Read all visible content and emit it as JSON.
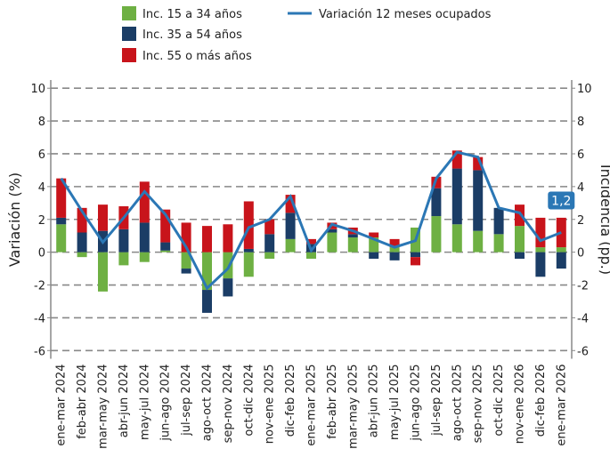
{
  "chart_data": {
    "type": "bar",
    "categories": [
      "ene-mar 2024",
      "feb-abr 2024",
      "mar-may 2024",
      "abr-jun 2024",
      "may-jul 2024",
      "jun-ago 2024",
      "jul-sep 2024",
      "ago-oct 2024",
      "sep-nov 2024",
      "oct-dic 2024",
      "nov-ene 2025",
      "dic-feb 2025",
      "ene-mar 2025",
      "feb-abr 2025",
      "mar-may 2025",
      "abr-jun 2025",
      "may-jul 2025",
      "jun-ago 2025",
      "jul-sep 2025",
      "ago-oct 2025",
      "sep-nov 2025",
      "oct-dic 2025",
      "nov-ene 2026",
      "dic-feb 2026",
      "ene-mar 2026"
    ],
    "series": [
      {
        "name": "Inc. 15 a 34 años",
        "color": "#6eb043",
        "values": [
          1.7,
          -0.3,
          -2.4,
          -0.8,
          -0.6,
          0.1,
          -1.0,
          -2.3,
          -1.6,
          -1.5,
          -0.4,
          0.8,
          -0.4,
          1.2,
          0.9,
          0.9,
          0.3,
          1.5,
          2.2,
          1.7,
          1.3,
          1.1,
          1.6,
          0.3,
          0.3
        ]
      },
      {
        "name": "Inc. 35 a 54 años",
        "color": "#1b3d66",
        "values": [
          0.4,
          1.2,
          1.3,
          1.4,
          1.8,
          0.5,
          -0.3,
          -1.4,
          -1.1,
          0.2,
          1.1,
          1.6,
          0.5,
          0.2,
          0.2,
          -0.4,
          -0.5,
          -0.3,
          1.7,
          3.4,
          3.7,
          1.6,
          -0.4,
          -1.5,
          -1.0
        ]
      },
      {
        "name": "Inc. 55 o más años",
        "color": "#c8141b",
        "values": [
          2.4,
          1.5,
          1.6,
          1.4,
          2.5,
          2.0,
          1.8,
          1.6,
          1.7,
          2.9,
          0.9,
          1.1,
          0.3,
          0.4,
          0.4,
          0.3,
          0.5,
          -0.5,
          0.7,
          1.1,
          0.8,
          0,
          1.3,
          1.8,
          1.8
        ]
      },
      {
        "name": "Variación 12 meses ocupados",
        "type": "line",
        "color": "#2b77b5",
        "values": [
          4.5,
          2.5,
          0.6,
          2.1,
          3.7,
          2.3,
          0.3,
          -2.2,
          -1.0,
          1.5,
          2.0,
          3.4,
          0.1,
          1.7,
          1.3,
          0.8,
          0.3,
          0.7,
          4.5,
          6.1,
          5.8,
          2.7,
          2.4,
          0.7,
          1.2
        ],
        "value_labels": [
          null,
          null,
          null,
          null,
          null,
          null,
          null,
          null,
          null,
          null,
          null,
          null,
          null,
          null,
          null,
          null,
          null,
          null,
          null,
          null,
          null,
          null,
          null,
          null,
          "1,2"
        ]
      }
    ],
    "y_label": "Variación (%)",
    "y2_label": "Incidencia (pp.)",
    "ylim": [
      -6.5,
      10.5
    ],
    "yticks": [
      -6,
      -4,
      -2,
      0,
      2,
      4,
      6,
      8,
      10
    ],
    "y2lim": [
      -6.5,
      10.5
    ],
    "y2ticks": [
      -6,
      -4,
      -2,
      0,
      2,
      4,
      6,
      8,
      10
    ],
    "grid": true
  }
}
